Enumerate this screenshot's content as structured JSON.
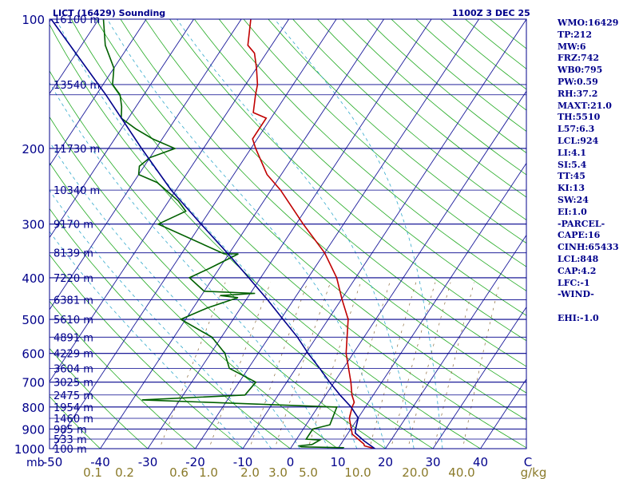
{
  "station_title": "LICT (16429) Sounding",
  "time_label": "1100Z  3 DEC 25",
  "indices": [
    "WMO:16429",
    "TP:212",
    "MW:6",
    "FRZ:742",
    "WB0:795",
    "PW:0.59",
    "RH:37.2",
    "MAXT:21.0",
    "TH:5510",
    "L57:6.3",
    "LCL:924",
    "LI:4.1",
    "SI:5.4",
    "TT:45",
    "KI:13",
    "SW:24",
    "EI:1.0",
    "-PARCEL-",
    "CAPE:16",
    "CINH:65433",
    "LCL:848",
    "CAP:4.2",
    "LFC:-1",
    "-WIND-",
    "",
    "EHI:-1.0"
  ],
  "chart_data": {
    "type": "line",
    "title": "LICT (16429) Sounding",
    "xlabel": "",
    "ylabel": "mb",
    "y_scale": "log-pressure",
    "ylim": [
      1000,
      100
    ],
    "xlim": [
      -50,
      50
    ],
    "pressure_ticks": [
      100,
      200,
      300,
      400,
      500,
      600,
      700,
      800,
      900,
      1000
    ],
    "temperature_ticks": [
      "-50",
      "-40",
      "-30",
      "-20",
      "-10",
      "0",
      "10",
      "20",
      "30",
      "40",
      "C"
    ],
    "mixing_ratio_ticks": [
      "0.1",
      "0.2",
      "0.6",
      "1.0",
      "2.0",
      "3.0",
      "5.0",
      "10.0",
      "20.0",
      "40.0",
      "g/kg"
    ],
    "height_labels": [
      {
        "p": 100,
        "label": "16100 m"
      },
      {
        "p": 142,
        "label": "13540 m"
      },
      {
        "p": 200,
        "label": "11730 m"
      },
      {
        "p": 250,
        "label": "10340 m"
      },
      {
        "p": 300,
        "label": "9170 m"
      },
      {
        "p": 350,
        "label": "8139 m"
      },
      {
        "p": 400,
        "label": "7220 m"
      },
      {
        "p": 450,
        "label": "6381 m"
      },
      {
        "p": 500,
        "label": "5610 m"
      },
      {
        "p": 550,
        "label": "4891 m"
      },
      {
        "p": 600,
        "label": "4229 m"
      },
      {
        "p": 650,
        "label": "3604 m"
      },
      {
        "p": 700,
        "label": "3025 m"
      },
      {
        "p": 750,
        "label": "2475 m"
      },
      {
        "p": 800,
        "label": "1954 m"
      },
      {
        "p": 850,
        "label": "1460 m"
      },
      {
        "p": 900,
        "label": "985 m"
      },
      {
        "p": 950,
        "label": "533 m"
      },
      {
        "p": 1000,
        "label": "100 m"
      }
    ],
    "series": [
      {
        "color": "#c00000",
        "points": [
          [
            1000,
            17.8
          ],
          [
            985,
            15.2
          ],
          [
            975,
            14.8
          ],
          [
            925,
            11.0
          ],
          [
            850,
            8.2
          ],
          [
            800,
            7.2
          ],
          [
            780,
            7.0
          ],
          [
            750,
            5.5
          ],
          [
            700,
            3.5
          ],
          [
            600,
            -1.5
          ],
          [
            500,
            -5.8
          ],
          [
            450,
            -9.8
          ],
          [
            400,
            -14.0
          ],
          [
            350,
            -20.0
          ],
          [
            300,
            -28.5
          ],
          [
            250,
            -38.0
          ],
          [
            230,
            -43.0
          ],
          [
            200,
            -49.0
          ],
          [
            190,
            -51.0
          ],
          [
            180,
            -51.0
          ],
          [
            170,
            -51.0
          ],
          [
            165,
            -54.5
          ],
          [
            150,
            -56.5
          ],
          [
            142,
            -57.5
          ],
          [
            130,
            -60.0
          ],
          [
            120,
            -62.5
          ],
          [
            115,
            -65.0
          ],
          [
            100,
            -68.0
          ]
        ]
      },
      {
        "color": "#006000",
        "points": [
          [
            1000,
            11.0
          ],
          [
            995,
            11.0
          ],
          [
            990,
            2.0
          ],
          [
            985,
            1.5
          ],
          [
            978,
            4.0
          ],
          [
            955,
            5.0
          ],
          [
            950,
            2.0
          ],
          [
            900,
            2.0
          ],
          [
            880,
            5.0
          ],
          [
            800,
            4.0
          ],
          [
            770,
            -38.0
          ],
          [
            750,
            -17.0
          ],
          [
            700,
            -16.5
          ],
          [
            650,
            -24.0
          ],
          [
            600,
            -27.0
          ],
          [
            550,
            -32.0
          ],
          [
            500,
            -41.0
          ],
          [
            470,
            -37.0
          ],
          [
            445,
            -32.0
          ],
          [
            440,
            -36.0
          ],
          [
            435,
            -29.0
          ],
          [
            430,
            -40.0
          ],
          [
            400,
            -45.0
          ],
          [
            380,
            -42.0
          ],
          [
            352,
            -38.0
          ],
          [
            352,
            -41.0
          ],
          [
            300,
            -59.0
          ],
          [
            280,
            -55.0
          ],
          [
            265,
            -58.0
          ],
          [
            240,
            -65.0
          ],
          [
            230,
            -70.0
          ],
          [
            220,
            -71.0
          ],
          [
            210,
            -70.0
          ],
          [
            200,
            -66.0
          ],
          [
            190,
            -72.0
          ],
          [
            180,
            -77.0
          ],
          [
            170,
            -81.5
          ],
          [
            160,
            -83.0
          ],
          [
            150,
            -85.0
          ],
          [
            142,
            -88.0
          ],
          [
            130,
            -90.0
          ],
          [
            115,
            -95.0
          ],
          [
            100,
            -99.0
          ]
        ]
      },
      {
        "color": "#00008b",
        "points": [
          [
            1000,
            17.8
          ],
          [
            960,
            14.5
          ],
          [
            920,
            11.5
          ],
          [
            900,
            11.0
          ],
          [
            848,
            10.0
          ],
          [
            800,
            7.0
          ],
          [
            750,
            3.0
          ],
          [
            700,
            -1.0
          ],
          [
            650,
            -5.0
          ],
          [
            600,
            -9.5
          ],
          [
            550,
            -14.0
          ],
          [
            500,
            -19.5
          ],
          [
            450,
            -25.5
          ],
          [
            400,
            -32.5
          ],
          [
            350,
            -40.5
          ],
          [
            300,
            -50.0
          ],
          [
            250,
            -61.0
          ],
          [
            200,
            -73.0
          ],
          [
            150,
            -88.0
          ],
          [
            100,
            -110.0
          ]
        ]
      }
    ]
  }
}
